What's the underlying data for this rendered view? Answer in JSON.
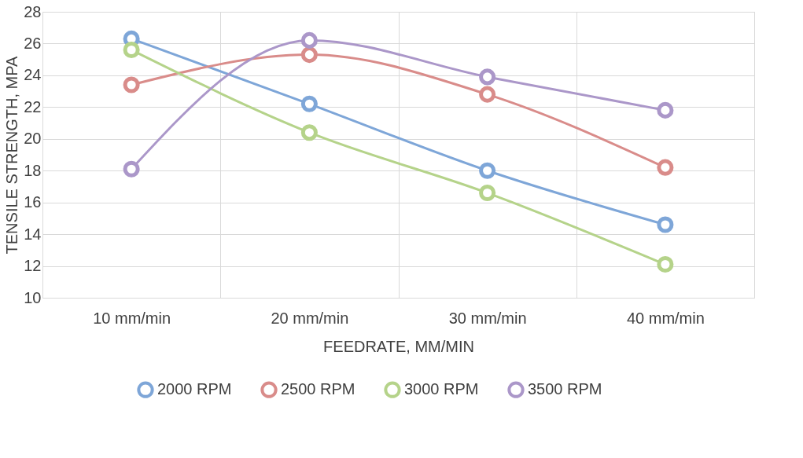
{
  "chart_data": {
    "type": "line",
    "xlabel": "FEEDRATE, MM/MIN",
    "ylabel": "TENSILE STRENGTH, MPA",
    "categories": [
      "10 mm/min",
      "20 mm/min",
      "30 mm/min",
      "40 mm/min"
    ],
    "series": [
      {
        "name": "2000 RPM",
        "color": "#7ea6d8",
        "values": [
          26.3,
          22.2,
          18.0,
          14.6
        ]
      },
      {
        "name": "2500 RPM",
        "color": "#d98c8a",
        "values": [
          23.4,
          25.3,
          22.8,
          18.2
        ]
      },
      {
        "name": "3000 RPM",
        "color": "#b5d38a",
        "values": [
          25.6,
          20.4,
          16.6,
          12.1
        ]
      },
      {
        "name": "3500 RPM",
        "color": "#ab97c9",
        "values": [
          18.1,
          26.2,
          23.9,
          21.8
        ]
      }
    ],
    "ylim": [
      10,
      28
    ],
    "yticks": [
      10,
      12,
      14,
      16,
      18,
      20,
      22,
      24,
      26,
      28
    ],
    "grid": true,
    "legend": "bottom",
    "marker": "circle",
    "line_style": "solid"
  }
}
